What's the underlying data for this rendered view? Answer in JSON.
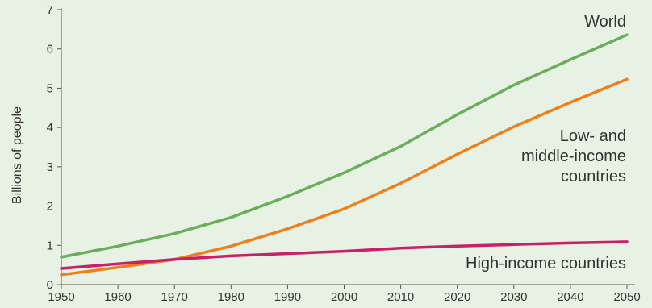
{
  "chart_data": {
    "type": "line",
    "ylabel": "Billions of people",
    "xlabel": "",
    "x": [
      1950,
      1960,
      1970,
      1980,
      1990,
      2000,
      2010,
      2020,
      2030,
      2040,
      2050
    ],
    "xlim": [
      1950,
      2050
    ],
    "ylim": [
      0,
      7
    ],
    "yticks": [
      0,
      1,
      2,
      3,
      4,
      5,
      6,
      7
    ],
    "grid": false,
    "series": [
      {
        "name": "World",
        "color": "#6aae5c",
        "values": [
          0.7,
          0.98,
          1.3,
          1.71,
          2.25,
          2.85,
          3.52,
          4.33,
          5.08,
          5.73,
          6.36
        ]
      },
      {
        "name": "Low- and middle-income countries",
        "name_lines": [
          "Low- and",
          "middle-income",
          "countries"
        ],
        "color": "#ee7f1b",
        "values": [
          0.25,
          0.44,
          0.64,
          0.98,
          1.42,
          1.93,
          2.58,
          3.32,
          4.02,
          4.64,
          5.23
        ]
      },
      {
        "name": "High-income countries",
        "color": "#cc1f6a",
        "values": [
          0.41,
          0.53,
          0.64,
          0.73,
          0.79,
          0.85,
          0.93,
          0.98,
          1.02,
          1.06,
          1.09
        ]
      }
    ]
  }
}
